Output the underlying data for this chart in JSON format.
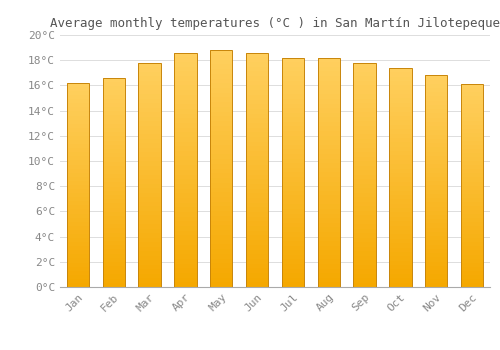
{
  "title": "Average monthly temperatures (°C ) in San Martín Jilotepeque",
  "months": [
    "Jan",
    "Feb",
    "Mar",
    "Apr",
    "May",
    "Jun",
    "Jul",
    "Aug",
    "Sep",
    "Oct",
    "Nov",
    "Dec"
  ],
  "values": [
    16.2,
    16.6,
    17.8,
    18.6,
    18.8,
    18.6,
    18.2,
    18.2,
    17.8,
    17.4,
    16.8,
    16.1
  ],
  "bar_color_bottom": "#F5A800",
  "bar_color_top": "#FFD060",
  "bar_edge_color": "#C8850A",
  "ylim": [
    0,
    20
  ],
  "ytick_step": 2,
  "background_color": "#ffffff",
  "grid_color": "#dddddd",
  "title_fontsize": 9,
  "tick_fontsize": 8,
  "font_family": "monospace",
  "tick_color": "#888888",
  "bar_width": 0.62
}
